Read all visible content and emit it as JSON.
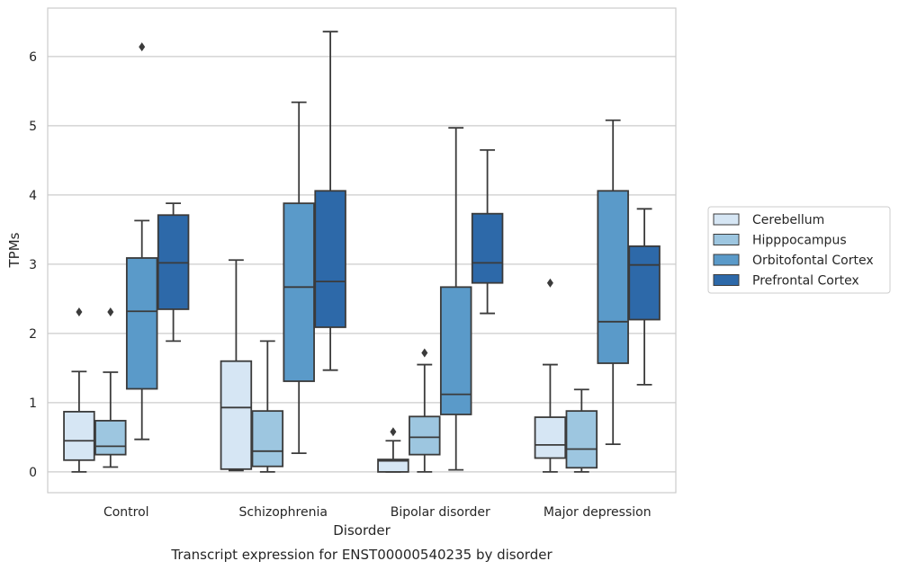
{
  "chart_data": {
    "type": "box",
    "title": "Transcript expression for ENST00000540235 by disorder",
    "xlabel": "Disorder",
    "ylabel": "TPMs",
    "ylim": [
      -0.3,
      6.7
    ],
    "yticks": [
      0,
      1,
      2,
      3,
      4,
      5,
      6
    ],
    "grid": true,
    "legend_position": "right",
    "categories": [
      "Control",
      "Schizophrenia",
      "Bipolar disorder",
      "Major depression"
    ],
    "series": [
      {
        "name": "Cerebellum",
        "color": "#d6e6f4",
        "boxes": [
          {
            "whisker_low": 0.0,
            "q1": 0.17,
            "median": 0.45,
            "q3": 0.87,
            "whisker_high": 1.45,
            "outliers": [
              2.31
            ]
          },
          {
            "whisker_low": 0.02,
            "q1": 0.04,
            "median": 0.93,
            "q3": 1.6,
            "whisker_high": 3.06,
            "outliers": []
          },
          {
            "whisker_low": 0.0,
            "q1": 0.0,
            "median": 0.16,
            "q3": 0.18,
            "whisker_high": 0.45,
            "outliers": [
              0.58
            ]
          },
          {
            "whisker_low": 0.0,
            "q1": 0.2,
            "median": 0.39,
            "q3": 0.79,
            "whisker_high": 1.55,
            "outliers": [
              2.73
            ]
          }
        ]
      },
      {
        "name": "Hipppocampus",
        "color": "#9dc6e0",
        "boxes": [
          {
            "whisker_low": 0.07,
            "q1": 0.25,
            "median": 0.37,
            "q3": 0.74,
            "whisker_high": 1.44,
            "outliers": [
              2.31
            ]
          },
          {
            "whisker_low": 0.0,
            "q1": 0.08,
            "median": 0.3,
            "q3": 0.88,
            "whisker_high": 1.89,
            "outliers": []
          },
          {
            "whisker_low": 0.0,
            "q1": 0.25,
            "median": 0.5,
            "q3": 0.8,
            "whisker_high": 1.55,
            "outliers": [
              1.72
            ]
          },
          {
            "whisker_low": 0.0,
            "q1": 0.06,
            "median": 0.33,
            "q3": 0.88,
            "whisker_high": 1.19,
            "outliers": []
          }
        ]
      },
      {
        "name": "Orbitofontal Cortex",
        "color": "#5a9ac9",
        "boxes": [
          {
            "whisker_low": 0.47,
            "q1": 1.2,
            "median": 2.32,
            "q3": 3.09,
            "whisker_high": 3.63,
            "outliers": [
              6.14
            ]
          },
          {
            "whisker_low": 0.27,
            "q1": 1.31,
            "median": 2.67,
            "q3": 3.88,
            "whisker_high": 5.34,
            "outliers": []
          },
          {
            "whisker_low": 0.03,
            "q1": 0.83,
            "median": 1.12,
            "q3": 2.67,
            "whisker_high": 4.97,
            "outliers": []
          },
          {
            "whisker_low": 0.4,
            "q1": 1.57,
            "median": 2.17,
            "q3": 4.06,
            "whisker_high": 5.08,
            "outliers": []
          }
        ]
      },
      {
        "name": "Prefrontal Cortex",
        "color": "#2d69a9",
        "boxes": [
          {
            "whisker_low": 1.89,
            "q1": 2.35,
            "median": 3.02,
            "q3": 3.71,
            "whisker_high": 3.88,
            "outliers": []
          },
          {
            "whisker_low": 1.47,
            "q1": 2.09,
            "median": 2.75,
            "q3": 4.06,
            "whisker_high": 6.36,
            "outliers": []
          },
          {
            "whisker_low": 2.29,
            "q1": 2.73,
            "median": 3.02,
            "q3": 3.73,
            "whisker_high": 4.65,
            "outliers": []
          },
          {
            "whisker_low": 1.26,
            "q1": 2.2,
            "median": 2.99,
            "q3": 3.26,
            "whisker_high": 3.8,
            "outliers": []
          }
        ]
      }
    ]
  }
}
